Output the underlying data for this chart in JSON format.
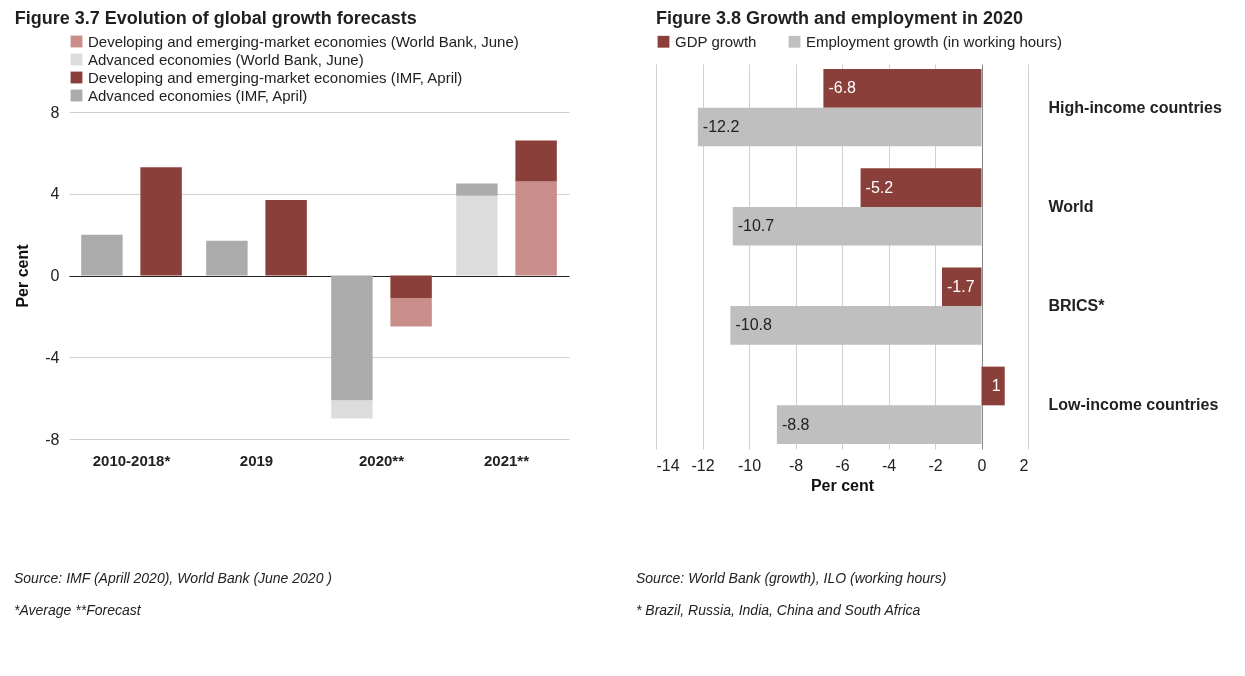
{
  "chart_data": [
    {
      "type": "bar",
      "title": "Figure 3.7 Evolution of global growth forecasts",
      "ylabel": "Per cent",
      "categories": [
        "2010-2018*",
        "2019",
        "2020**",
        "2021**"
      ],
      "series": [
        {
          "name": "Developing and emerging-market economies (World Bank, June)",
          "color": "#c98e89",
          "values": [
            null,
            null,
            -1.4,
            4.6
          ],
          "base": [
            null,
            null,
            -1.1,
            0
          ]
        },
        {
          "name": "Advanced economies (World Bank, June)",
          "color": "#dcdcdc",
          "values": [
            null,
            null,
            -0.9,
            3.9
          ],
          "base": [
            null,
            null,
            -6.1,
            0
          ]
        },
        {
          "name": "Developing and emerging-market economies (IMF, April)",
          "color": "#8b3f3b",
          "values": [
            5.3,
            3.7,
            -1.1,
            2.0
          ],
          "base": [
            0,
            0,
            0,
            4.6
          ]
        },
        {
          "name": "Advanced economies (IMF, April)",
          "color": "#ababab",
          "values": [
            2.0,
            1.7,
            -6.1,
            0.6
          ],
          "base": [
            0,
            0,
            0,
            3.9
          ]
        }
      ],
      "ylim": [
        -8,
        8
      ],
      "yticks": [
        8,
        4,
        0,
        -4,
        -8
      ],
      "grid": "y",
      "legend": "top",
      "annotations": [
        "Source: IMF (Aprill 2020), World Bank (June 2020 )",
        "*Average **Forecast"
      ]
    },
    {
      "type": "bar",
      "orientation": "horizontal",
      "title": "Figure 3.8 Growth and employment in 2020",
      "xlabel": "Per cent",
      "categories": [
        "High-income countries",
        "World",
        "BRICS*",
        "Low-income countries"
      ],
      "series": [
        {
          "name": "GDP growth",
          "color": "#8b3f3b",
          "values": [
            -6.8,
            -5.2,
            -1.7,
            1
          ]
        },
        {
          "name": "Employment growth (in working hours)",
          "color": "#bfbfbf",
          "values": [
            -12.2,
            -10.7,
            -10.8,
            -8.8
          ]
        }
      ],
      "xlim": [
        -14,
        2
      ],
      "xticks": [
        -14,
        -12,
        -10,
        -8,
        -6,
        -4,
        -2,
        0,
        2
      ],
      "grid": "x",
      "legend": "top",
      "data_labels": true,
      "annotations": [
        "Source: World Bank (growth), ILO (working hours)",
        "* Brazil, Russia, India, China and South Africa"
      ]
    }
  ]
}
